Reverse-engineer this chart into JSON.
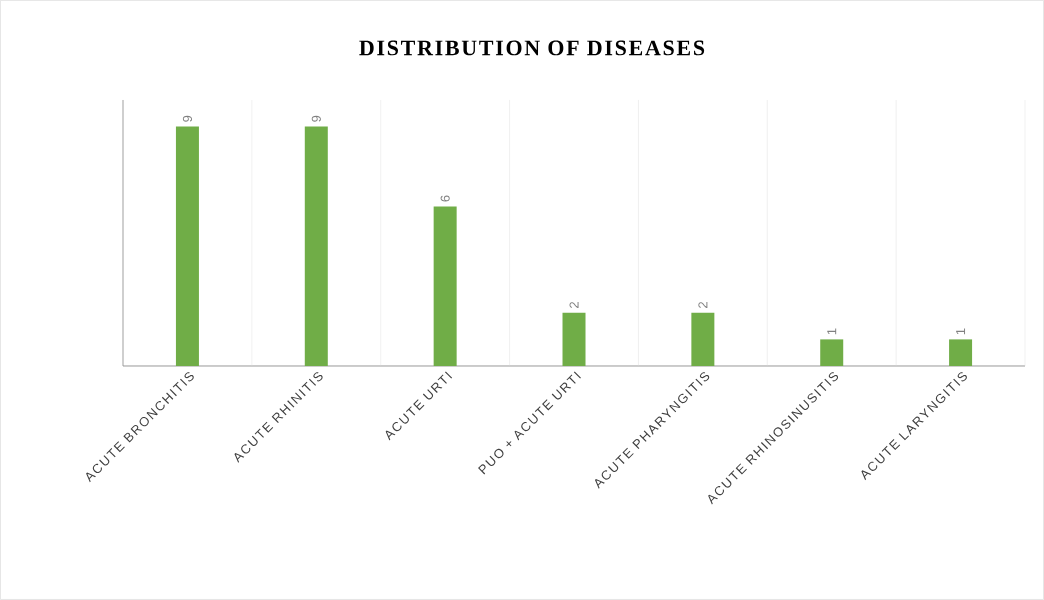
{
  "chart_data": {
    "type": "bar",
    "title": "DISTRIBUTION OF DISEASES",
    "categories": [
      "ACUTE BRONCHITIS",
      "ACUTE RHINITIS",
      "ACUTE URTI",
      "PUO + ACUTE URTI",
      "ACUTE PHARYNGITIS",
      "ACUTE RHINOSINUSITIS",
      "ACUTE LARYNGITIS"
    ],
    "values": [
      9,
      9,
      6,
      2,
      2,
      1,
      1
    ],
    "color": "#70ad47",
    "ylim": [
      0,
      10
    ],
    "data_labels": true,
    "grid": "x"
  }
}
